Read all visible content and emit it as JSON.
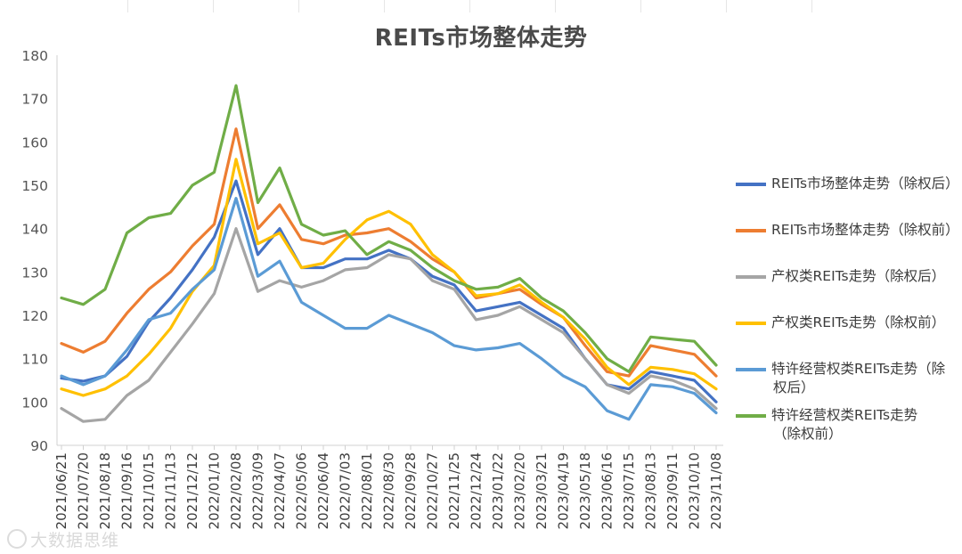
{
  "chart_data": {
    "type": "line",
    "title": "REITs市场整体走势",
    "xlabel": "",
    "ylabel": "",
    "ylim": [
      90,
      180
    ],
    "yticks": [
      90,
      100,
      110,
      120,
      130,
      140,
      150,
      160,
      170,
      180
    ],
    "grid": false,
    "legend_position": "right",
    "categories": [
      "2021/06/21",
      "2021/07/20",
      "2021/08/18",
      "2021/09/16",
      "2021/10/15",
      "2021/11/13",
      "2021/12/12",
      "2022/01/10",
      "2022/02/08",
      "2022/03/09",
      "2022/04/07",
      "2022/05/06",
      "2022/06/04",
      "2022/07/03",
      "2022/08/01",
      "2022/08/30",
      "2022/09/28",
      "2022/10/27",
      "2022/11/25",
      "2022/12/24",
      "2023/01/22",
      "2023/02/20",
      "2023/03/21",
      "2023/04/19",
      "2023/05/18",
      "2023/06/16",
      "2023/07/15",
      "2023/08/13",
      "2023/09/11",
      "2023/10/10",
      "2023/11/08"
    ],
    "series": [
      {
        "name": "REITs市场整体走势（除权后）",
        "label_lines": [
          "REITs市场整体走势（除权后）"
        ],
        "color": "#4472c4",
        "values": [
          105.5,
          104.8,
          106.0,
          110.5,
          118.5,
          124.0,
          130.5,
          138.0,
          151.0,
          134.0,
          140.0,
          131.0,
          131.0,
          133.0,
          133.0,
          135.0,
          133.0,
          129.0,
          127.0,
          121.0,
          122.0,
          123.0,
          120.0,
          117.0,
          110.0,
          104.0,
          103.0,
          107.0,
          106.0,
          105.0,
          100.0
        ]
      },
      {
        "name": "REITs市场整体走势（除权前）",
        "label_lines": [
          "REITs市场整体走势（除权前）"
        ],
        "color": "#ed7d31",
        "values": [
          113.5,
          111.5,
          114.0,
          120.5,
          126.0,
          130.0,
          136.0,
          141.0,
          163.0,
          140.0,
          145.5,
          137.5,
          136.5,
          138.5,
          139.0,
          140.0,
          137.0,
          133.0,
          130.0,
          124.0,
          125.0,
          126.0,
          122.5,
          119.5,
          113.0,
          107.0,
          106.0,
          113.0,
          112.0,
          111.0,
          106.0
        ]
      },
      {
        "name": "产权类REITs走势（除权后）",
        "label_lines": [
          "产权类REITs走势（除权后）"
        ],
        "color": "#a5a5a5",
        "values": [
          98.5,
          95.5,
          96.0,
          101.5,
          105.0,
          111.5,
          118.0,
          125.0,
          140.0,
          125.5,
          128.0,
          126.5,
          128.0,
          130.5,
          131.0,
          134.0,
          133.0,
          128.0,
          126.0,
          119.0,
          120.0,
          122.0,
          119.0,
          116.0,
          110.0,
          104.0,
          102.0,
          106.0,
          105.0,
          103.0,
          98.5
        ]
      },
      {
        "name": "产权类REITs走势（除权前）",
        "label_lines": [
          "产权类REITs走势（除权前）"
        ],
        "color": "#ffc000",
        "values": [
          103.0,
          101.5,
          103.0,
          106.0,
          111.0,
          117.0,
          125.5,
          131.5,
          156.0,
          136.5,
          139.0,
          131.0,
          132.0,
          137.5,
          142.0,
          144.0,
          141.0,
          134.0,
          130.0,
          124.5,
          125.0,
          127.0,
          123.0,
          119.5,
          114.5,
          108.0,
          104.0,
          108.0,
          107.5,
          106.5,
          103.0
        ]
      },
      {
        "name": "特许经营权类REITs走势（除权后）",
        "label_lines": [
          "特许经营权类REITs走势（除",
          "权后）"
        ],
        "color": "#5b9bd5",
        "values": [
          106.0,
          104.0,
          106.0,
          112.0,
          119.0,
          120.5,
          126.0,
          130.5,
          147.0,
          129.0,
          132.5,
          123.0,
          120.0,
          117.0,
          117.0,
          120.0,
          118.0,
          116.0,
          113.0,
          112.0,
          112.5,
          113.5,
          110.0,
          106.0,
          103.5,
          98.0,
          96.0,
          104.0,
          103.5,
          102.0,
          97.5
        ]
      },
      {
        "name": "特许经营权类REITs走势（除权前）",
        "label_lines": [
          "特许经营权类REITs走势",
          "（除权前）"
        ],
        "color": "#70ad47",
        "values": [
          124.0,
          122.5,
          126.0,
          139.0,
          142.5,
          143.5,
          150.0,
          153.0,
          173.0,
          146.0,
          154.0,
          141.0,
          138.5,
          139.5,
          134.0,
          137.0,
          135.0,
          131.0,
          128.0,
          126.0,
          126.5,
          128.5,
          124.0,
          121.0,
          116.0,
          110.0,
          107.0,
          115.0,
          114.5,
          114.0,
          108.5
        ]
      }
    ]
  },
  "watermark": {
    "text": "大数据思维"
  }
}
